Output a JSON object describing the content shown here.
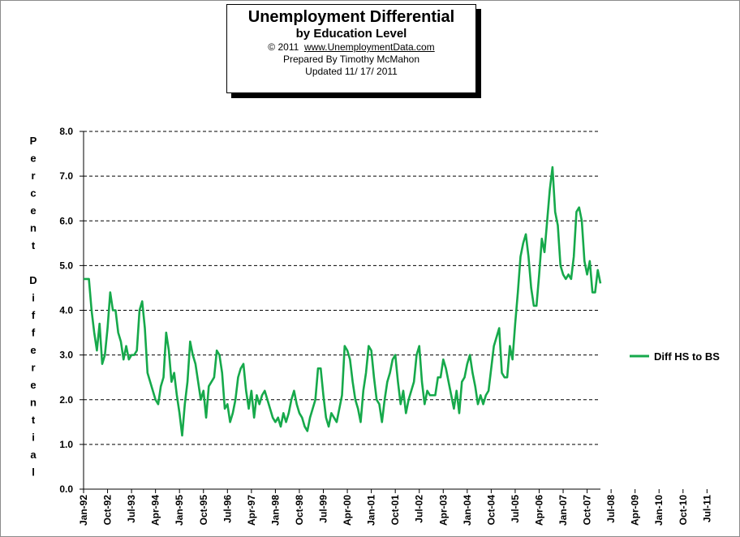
{
  "title": {
    "line1": "Unemployment  Differential",
    "line2": "by Education Level",
    "copyright_prefix": "© 2011",
    "copyright_site": "www.UnemploymentData.com",
    "line4": "Prepared  By Timothy  McMahon",
    "line5": "Updated   11/ 17/ 2011"
  },
  "chart_data": {
    "type": "line",
    "title": "Unemployment  Differential by Education Level",
    "ylabel": "Percent Differential",
    "xlabel": "",
    "ylim": [
      0,
      8
    ],
    "yticks": [
      "0.0",
      "1.0",
      "2.0",
      "3.0",
      "4.0",
      "5.0",
      "6.0",
      "7.0",
      "8.0"
    ],
    "grid": "horizontal dashed",
    "legend_position": "right",
    "x_start": "Jan-92",
    "x_end": "Oct-11",
    "x_tick_labels": [
      "Jan-92",
      "Oct-92",
      "Jul-93",
      "Apr-94",
      "Jan-95",
      "Oct-95",
      "Jul-96",
      "Apr-97",
      "Jan-98",
      "Oct-98",
      "Jul-99",
      "Apr-00",
      "Jan-01",
      "Oct-01",
      "Jul-02",
      "Apr-03",
      "Jan-04",
      "Oct-04",
      "Jul-05",
      "Apr-06",
      "Jan-07",
      "Oct-07",
      "Jul-08",
      "Apr-09",
      "Jan-10",
      "Oct-10",
      "Jul-11"
    ],
    "series": [
      {
        "name": "Diff HS to BS",
        "color": "#16a94b",
        "values": [
          4.7,
          4.7,
          4.7,
          4.0,
          3.5,
          3.1,
          3.7,
          2.8,
          3.0,
          3.6,
          4.4,
          4.0,
          4.0,
          3.5,
          3.3,
          2.9,
          3.2,
          2.9,
          3.0,
          3.0,
          3.1,
          4.0,
          4.2,
          3.6,
          2.6,
          2.4,
          2.2,
          2.0,
          1.9,
          2.3,
          2.5,
          3.5,
          3.1,
          2.4,
          2.6,
          2.1,
          1.7,
          1.2,
          1.9,
          2.4,
          3.3,
          3.0,
          2.8,
          2.4,
          2.0,
          2.2,
          1.6,
          2.3,
          2.4,
          2.5,
          3.1,
          3.0,
          2.6,
          1.8,
          1.9,
          1.5,
          1.7,
          2.0,
          2.5,
          2.7,
          2.8,
          2.2,
          1.8,
          2.2,
          1.6,
          2.1,
          1.9,
          2.1,
          2.2,
          2.0,
          1.8,
          1.6,
          1.5,
          1.6,
          1.4,
          1.7,
          1.5,
          1.7,
          2.0,
          2.2,
          1.9,
          1.7,
          1.6,
          1.4,
          1.3,
          1.6,
          1.8,
          2.0,
          2.7,
          2.7,
          2.1,
          1.6,
          1.4,
          1.7,
          1.6,
          1.5,
          1.8,
          2.1,
          3.2,
          3.1,
          2.9,
          2.4,
          2.0,
          1.8,
          1.5,
          2.2,
          2.6,
          3.2,
          3.1,
          2.5,
          2.0,
          1.9,
          1.5,
          2.0,
          2.4,
          2.6,
          2.9,
          3.0,
          2.4,
          1.9,
          2.2,
          1.7,
          2.0,
          2.2,
          2.4,
          3.0,
          3.2,
          2.4,
          1.9,
          2.2,
          2.1,
          2.1,
          2.1,
          2.5,
          2.5,
          2.9,
          2.7,
          2.4,
          2.1,
          1.8,
          2.2,
          1.7,
          2.4,
          2.5,
          2.8,
          3.0,
          2.6,
          2.3,
          1.9,
          2.1,
          1.9,
          2.1,
          2.2,
          2.7,
          3.2,
          3.4,
          3.6,
          2.6,
          2.5,
          2.5,
          3.2,
          2.9,
          3.7,
          4.4,
          5.2,
          5.5,
          5.7,
          5.2,
          4.5,
          4.1,
          4.1,
          4.8,
          5.6,
          5.3,
          6.0,
          6.7,
          7.2,
          6.2,
          5.9,
          5.0,
          4.8,
          4.7,
          4.8,
          4.7,
          5.2,
          6.2,
          6.3,
          6.0,
          5.1,
          4.8,
          5.1,
          4.4,
          4.4,
          4.9,
          4.6
        ]
      }
    ]
  }
}
